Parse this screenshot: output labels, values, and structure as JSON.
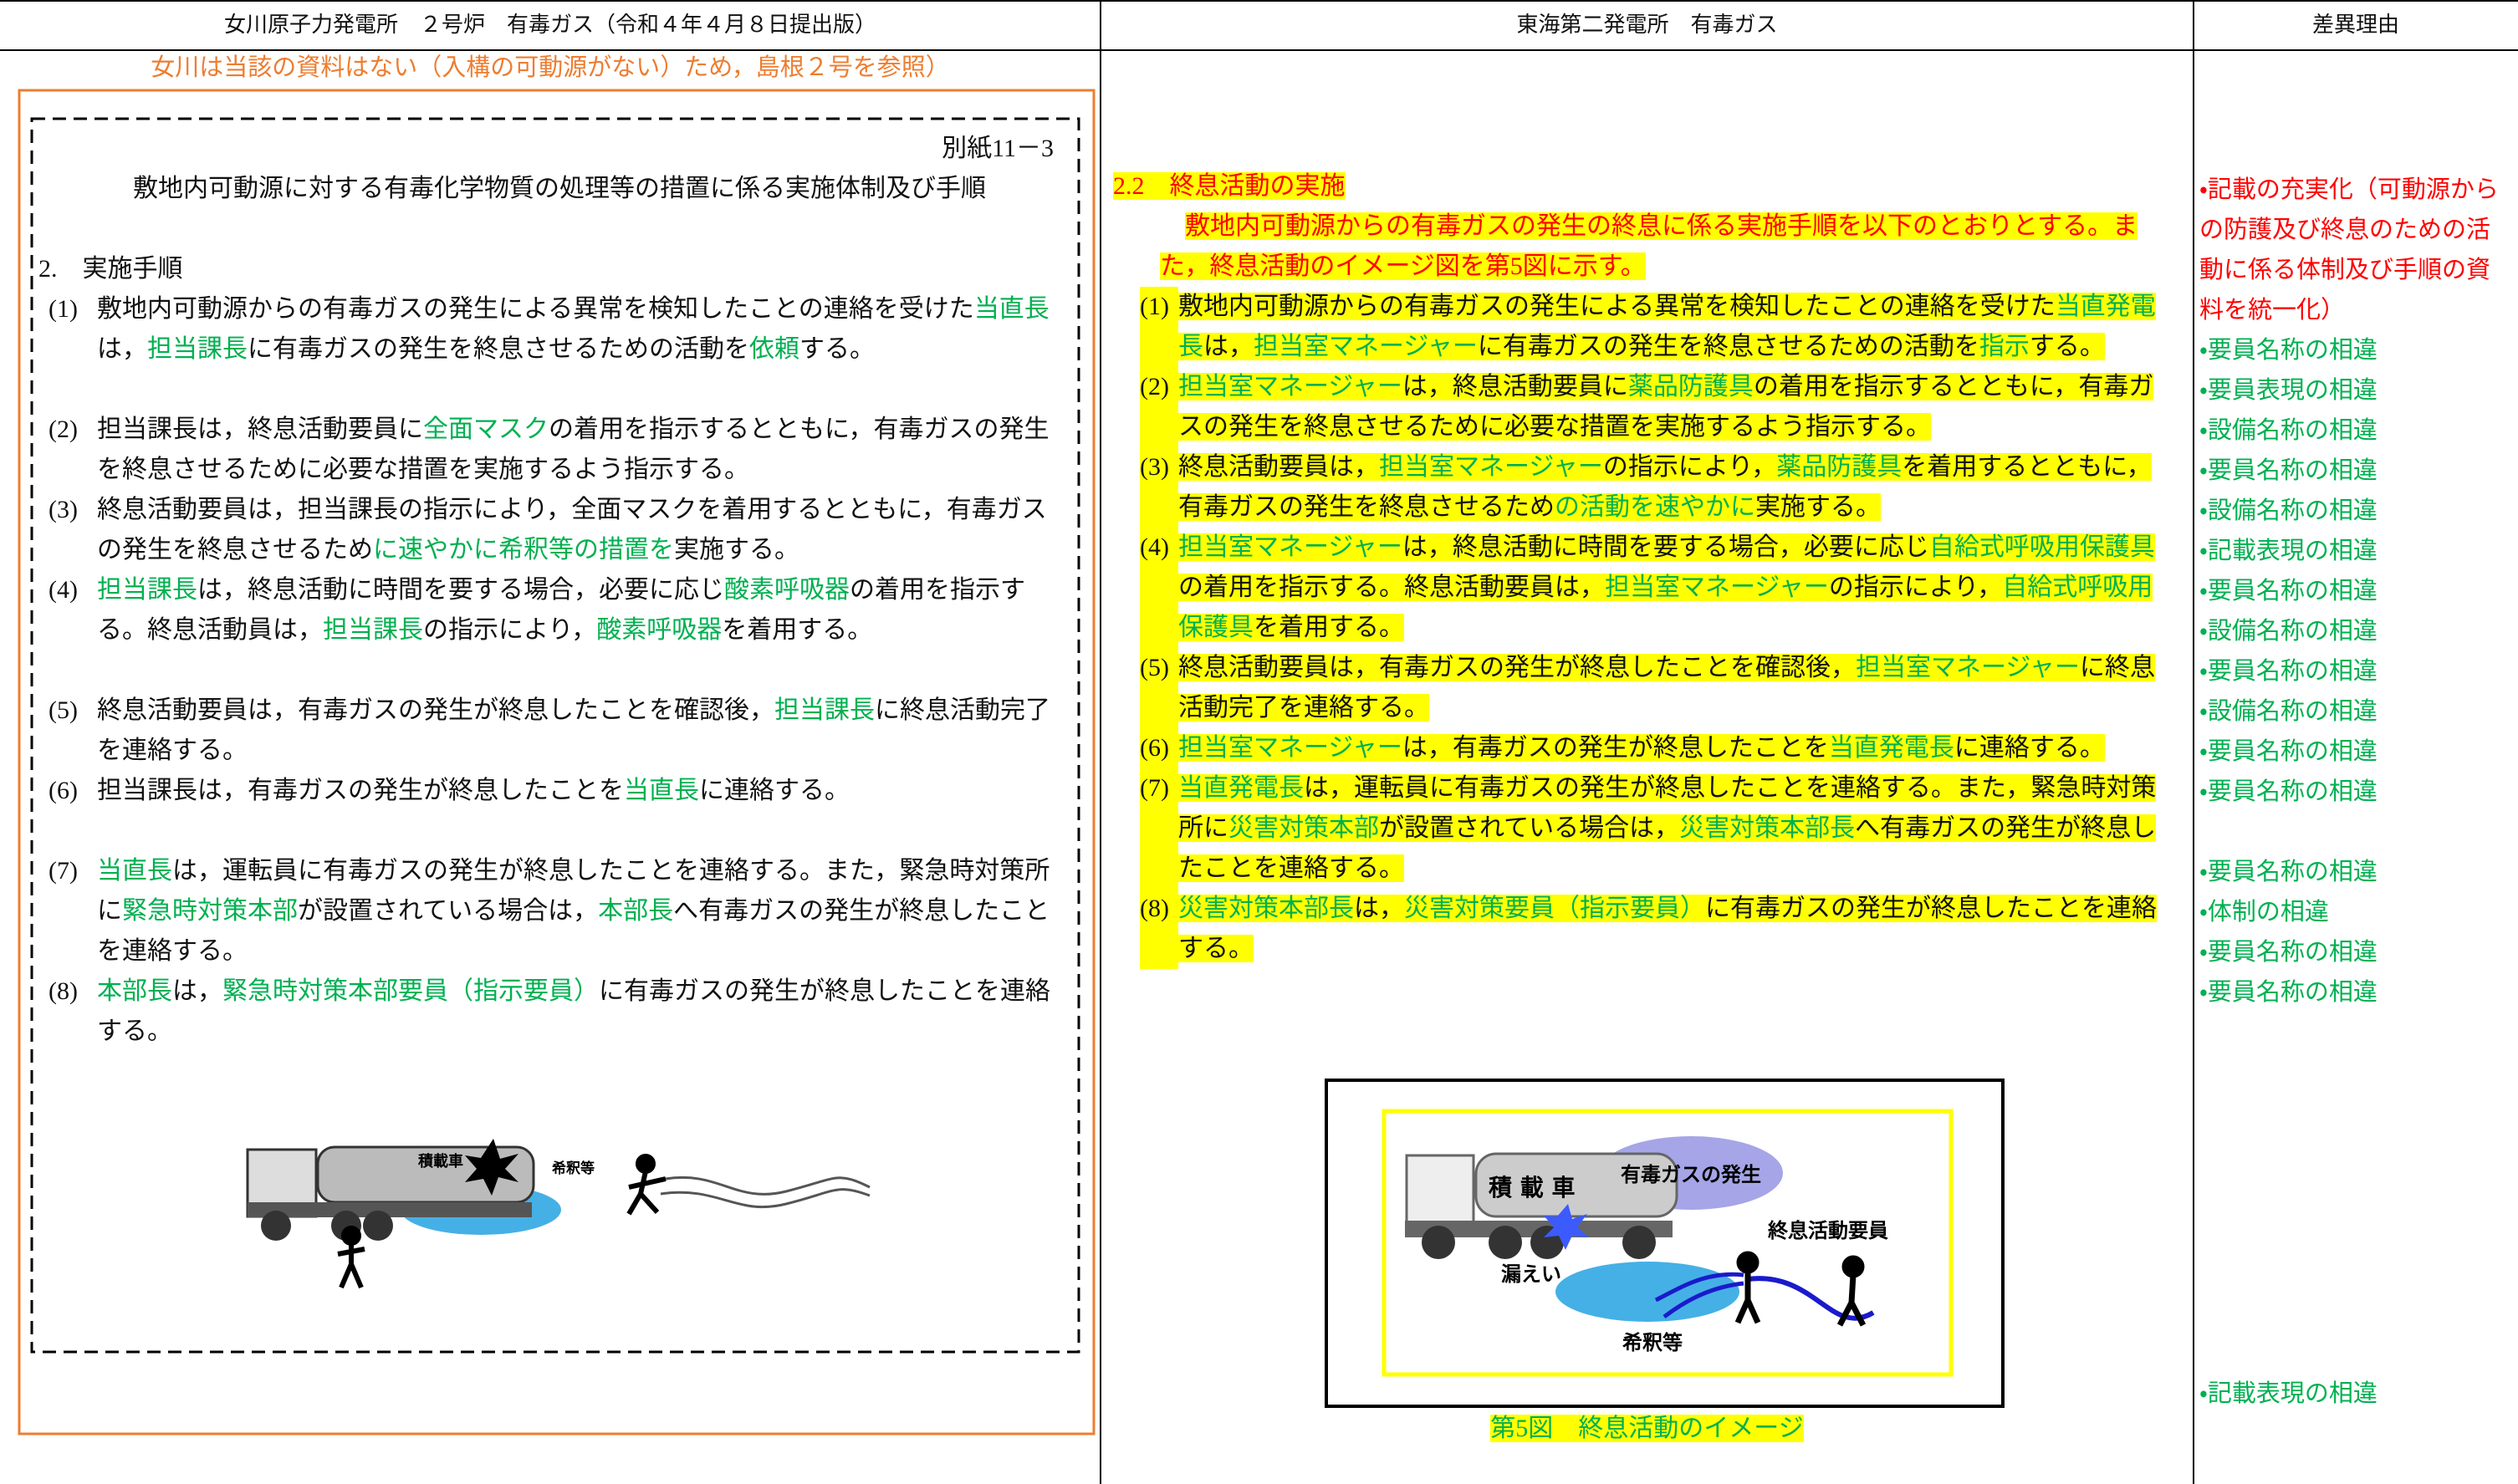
{
  "header": {
    "columns": [
      "女川原子力発電所　２号炉　有毒ガス（令和４年４月８日提出版）",
      "東海第二発電所　有毒ガス",
      "差異理由"
    ]
  },
  "left": {
    "note": "女川は当該の資料はない（入構の可動源がない）ため，島根２号を参照）",
    "attachment": "別紙11－3",
    "title": "敷地内可動源に対する有毒化学物質の処理等の措置に係る実施体制及び手順",
    "section": "2.　実施手順",
    "items": [
      {
        "label": "(1)",
        "segments": [
          {
            "text": "敷地内可動源からの有毒ガスの発生による異常を検知したことの連絡を受けた"
          },
          {
            "text": "当直長",
            "color": "#00b050"
          },
          {
            "text": "は，"
          },
          {
            "text": "担当課長",
            "color": "#00b050"
          },
          {
            "text": "に有毒ガスの発生を終息させるための活動を"
          },
          {
            "text": "依頼",
            "color": "#00b050"
          },
          {
            "text": "する。"
          }
        ]
      },
      {
        "label": "(2)",
        "segments": [
          {
            "text": "担当課長は，終息活動要員に"
          },
          {
            "text": "全面マスク",
            "color": "#00b050"
          },
          {
            "text": "の着用を指示するとともに，有毒ガスの発生を終息させるために必要な措置を実施するよう指示する。"
          }
        ]
      },
      {
        "label": "(3)",
        "segments": [
          {
            "text": "終息活動要員は，担当課長の指示により，全面マスクを着用するとともに，有毒ガスの発生を終息させるため"
          },
          {
            "text": "に速やかに希釈等の措置を",
            "color": "#00b050"
          },
          {
            "text": "実施する。"
          }
        ]
      },
      {
        "label": "(4)",
        "segments": [
          {
            "text": "担当課長",
            "color": "#00b050"
          },
          {
            "text": "は，終息活動に時間を要する場合，必要に応じ"
          },
          {
            "text": "酸素呼吸器",
            "color": "#00b050"
          },
          {
            "text": "の着用を指示する。終息活動員は，"
          },
          {
            "text": "担当課長",
            "color": "#00b050"
          },
          {
            "text": "の指示により，"
          },
          {
            "text": "酸素呼吸器",
            "color": "#00b050"
          },
          {
            "text": "を着用する。"
          }
        ]
      },
      {
        "label": "(5)",
        "segments": [
          {
            "text": "終息活動要員は，有毒ガスの発生が終息したことを確認後，"
          },
          {
            "text": "担当課長",
            "color": "#00b050"
          },
          {
            "text": "に終息活動完了を連絡する。"
          }
        ]
      },
      {
        "label": "(6)",
        "segments": [
          {
            "text": "担当課長は，有毒ガスの発生が終息したことを"
          },
          {
            "text": "当直長",
            "color": "#00b050"
          },
          {
            "text": "に連絡する。"
          }
        ]
      },
      {
        "label": "(7)",
        "segments": [
          {
            "text": "当直長",
            "color": "#00b050"
          },
          {
            "text": "は，運転員に有毒ガスの発生が終息したことを連絡する。また，緊急時対策所に"
          },
          {
            "text": "緊急時対策本部",
            "color": "#00b050"
          },
          {
            "text": "が設置されている場合は，"
          },
          {
            "text": "本部長",
            "color": "#00b050"
          },
          {
            "text": "へ有毒ガスの発生が終息したことを連絡する。"
          }
        ]
      },
      {
        "label": "(8)",
        "segments": [
          {
            "text": "本部長",
            "color": "#00b050"
          },
          {
            "text": "は，"
          },
          {
            "text": "緊急時対策本部要員（指示要員）",
            "color": "#00b050"
          },
          {
            "text": "に有毒ガスの発生が終息したことを連絡する。"
          }
        ]
      }
    ],
    "figure": {
      "truck": "積載車",
      "dilution": "希釈等"
    }
  },
  "middle": {
    "heading": "2.2　終息活動の実施",
    "intro": "敷地内可動源からの有毒ガスの発生の終息に係る実施手順を以下のとおりとする。また，終息活動のイメージ図を第5図に示す。",
    "items": [
      {
        "label": "(1)",
        "segments": [
          {
            "text": "敷地内可動源からの有毒ガスの発生による異常を検知したことの連絡を受けた"
          },
          {
            "text": "当直発電長",
            "color": "#00b050"
          },
          {
            "text": "は，"
          },
          {
            "text": "担当室マネージャー",
            "color": "#00b050"
          },
          {
            "text": "に有毒ガスの発生を終息させるための活動を"
          },
          {
            "text": "指示",
            "color": "#00b050"
          },
          {
            "text": "する。"
          }
        ]
      },
      {
        "label": "(2)",
        "segments": [
          {
            "text": "担当室マネージャー",
            "color": "#00b050"
          },
          {
            "text": "は，終息活動要員に"
          },
          {
            "text": "薬品防護具",
            "color": "#00b050"
          },
          {
            "text": "の着用を指示するとともに，有毒ガスの発生を終息させるために必要な措置を実施するよう指示する。"
          }
        ]
      },
      {
        "label": "(3)",
        "segments": [
          {
            "text": "終息活動要員は，"
          },
          {
            "text": "担当室マネージャー",
            "color": "#00b050"
          },
          {
            "text": "の指示により，"
          },
          {
            "text": "薬品防護具",
            "color": "#00b050"
          },
          {
            "text": "を着用するとともに，有毒ガスの発生を終息させるため"
          },
          {
            "text": "の活動を速やかに",
            "color": "#00b050"
          },
          {
            "text": "実施する。"
          }
        ]
      },
      {
        "label": "(4)",
        "segments": [
          {
            "text": "担当室マネージャー",
            "color": "#00b050"
          },
          {
            "text": "は，終息活動に時間を要する場合，必要に応じ"
          },
          {
            "text": "自給式呼吸用保護具",
            "color": "#00b050"
          },
          {
            "text": "の着用を指示する。終息活動要員は，"
          },
          {
            "text": "担当室マネージャー",
            "color": "#00b050"
          },
          {
            "text": "の指示により，"
          },
          {
            "text": "自給式呼吸用保護具",
            "color": "#00b050"
          },
          {
            "text": "を着用する。"
          }
        ]
      },
      {
        "label": "(5)",
        "segments": [
          {
            "text": "終息活動要員は，有毒ガスの発生が終息したことを確認後，"
          },
          {
            "text": "担当室マネージャー",
            "color": "#00b050"
          },
          {
            "text": "に終息活動完了を連絡する。"
          }
        ]
      },
      {
        "label": "(6)",
        "segments": [
          {
            "text": "担当室マネージャー",
            "color": "#00b050"
          },
          {
            "text": "は，有毒ガスの発生が終息したことを"
          },
          {
            "text": "当直発電長",
            "color": "#00b050"
          },
          {
            "text": "に連絡する。"
          }
        ]
      },
      {
        "label": "(7)",
        "segments": [
          {
            "text": "当直発電長",
            "color": "#00b050"
          },
          {
            "text": "は，運転員に有毒ガスの発生が終息したことを連絡する。また，緊急時対策所に"
          },
          {
            "text": "災害対策本部",
            "color": "#00b050"
          },
          {
            "text": "が設置されている場合は，"
          },
          {
            "text": "災害対策本部長",
            "color": "#00b050"
          },
          {
            "text": "へ有毒ガスの発生が終息したことを連絡する。"
          }
        ]
      },
      {
        "label": "(8)",
        "segments": [
          {
            "text": "災害対策本部長",
            "color": "#00b050"
          },
          {
            "text": "は，"
          },
          {
            "text": "災害対策要員（指示要員）",
            "color": "#00b050"
          },
          {
            "text": "に有毒ガスの発生が終息したことを連絡する。"
          }
        ]
      }
    ],
    "figure": {
      "gas": "有毒ガスの発生",
      "truck": "積 載 車",
      "workers": "終息活動要員",
      "leak": "漏えい",
      "dilution": "希釈等"
    },
    "caption": "第5図　終息活動のイメージ"
  },
  "right": {
    "reasons": [
      {
        "text": "・記載の充実化（可動源からの防護及び終息のための活動に係る体制及び手順の資料を統一化）",
        "color": "#ff0000"
      },
      {
        "text": "・要員名称の相違",
        "color": "#00b050"
      },
      {
        "text": "・要員表現の相違",
        "color": "#00b050"
      },
      {
        "text": "・設備名称の相違",
        "color": "#00b050"
      },
      {
        "text": "・要員名称の相違",
        "color": "#00b050"
      },
      {
        "text": "・設備名称の相違",
        "color": "#00b050"
      },
      {
        "text": "・記載表現の相違",
        "color": "#00b050"
      },
      {
        "text": "・要員名称の相違",
        "color": "#00b050"
      },
      {
        "text": "・設備名称の相違",
        "color": "#00b050"
      },
      {
        "text": "・要員名称の相違",
        "color": "#00b050"
      },
      {
        "text": "・設備名称の相違",
        "color": "#00b050"
      },
      {
        "text": "・要員名称の相違",
        "color": "#00b050"
      },
      {
        "text": "・要員名称の相違",
        "color": "#00b050"
      },
      {
        "text": "・要員名称の相違",
        "color": "#00b050"
      },
      {
        "text": "・体制の相違",
        "color": "#00b050"
      },
      {
        "text": "・要員名称の相違",
        "color": "#00b050"
      },
      {
        "text": "・要員名称の相違",
        "color": "#00b050"
      },
      {
        "text": "・記載表現の相違",
        "color": "#00b050"
      }
    ]
  }
}
